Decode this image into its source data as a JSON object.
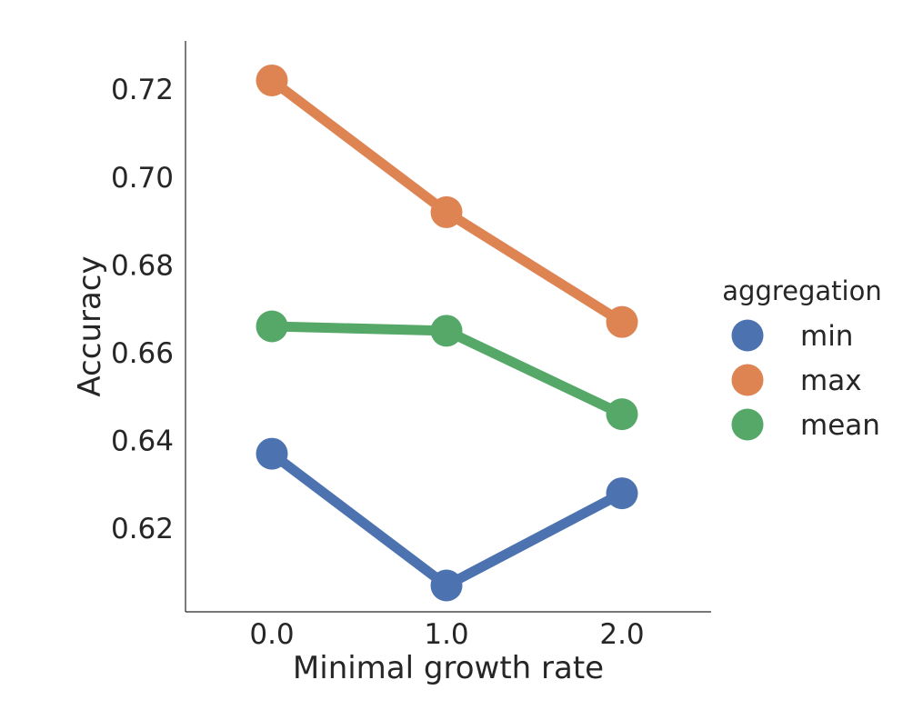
{
  "chart_data": {
    "type": "line",
    "title": "",
    "xlabel": "Minimal growth rate",
    "ylabel": "Accuracy",
    "categories": [
      "0.0",
      "1.0",
      "2.0"
    ],
    "ylim": [
      0.601,
      0.731
    ],
    "yticks": [
      "0.62",
      "0.64",
      "0.66",
      "0.68",
      "0.70",
      "0.72"
    ],
    "grid": false,
    "legend": {
      "title": "aggregation",
      "position": "right"
    },
    "series": [
      {
        "name": "min",
        "color": "#4c72b0",
        "values": [
          0.637,
          0.607,
          0.628
        ]
      },
      {
        "name": "max",
        "color": "#dd8452",
        "values": [
          0.722,
          0.692,
          0.667
        ]
      },
      {
        "name": "mean",
        "color": "#55a868",
        "values": [
          0.666,
          0.665,
          0.646
        ]
      }
    ]
  }
}
